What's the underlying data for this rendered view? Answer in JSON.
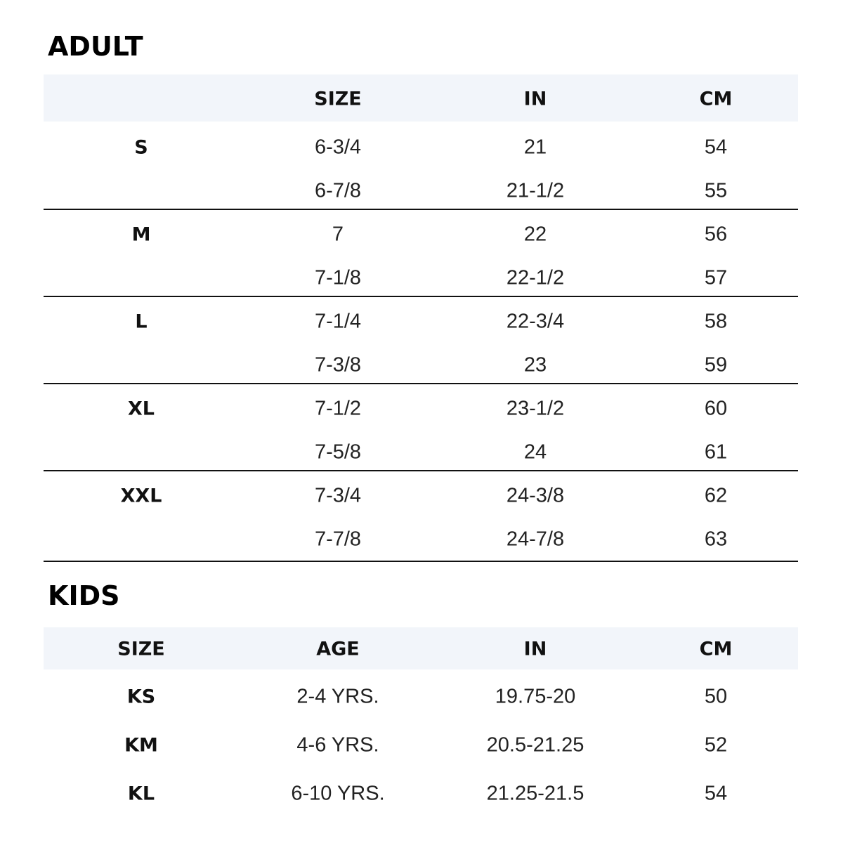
{
  "adult": {
    "title": "ADULT",
    "header": [
      "SIZE",
      "IN",
      "CM"
    ],
    "groups": [
      {
        "label": "S",
        "rows": [
          [
            "6-3/4",
            "21",
            "54"
          ],
          [
            "6-7/8",
            "21-1/2",
            "55"
          ]
        ]
      },
      {
        "label": "M",
        "rows": [
          [
            "7",
            "22",
            "56"
          ],
          [
            "7-1/8",
            "22-1/2",
            "57"
          ]
        ]
      },
      {
        "label": "L",
        "rows": [
          [
            "7-1/4",
            "22-3/4",
            "58"
          ],
          [
            "7-3/8",
            "23",
            "59"
          ]
        ]
      },
      {
        "label": "XL",
        "rows": [
          [
            "7-1/2",
            "23-1/2",
            "60"
          ],
          [
            "7-5/8",
            "24",
            "61"
          ]
        ]
      },
      {
        "label": "XXL",
        "rows": [
          [
            "7-3/4",
            "24-3/8",
            "62"
          ],
          [
            "7-7/8",
            "24-7/8",
            "63"
          ]
        ]
      }
    ]
  },
  "kids": {
    "title": "KIDS",
    "header": [
      "SIZE",
      "AGE",
      "IN",
      "CM"
    ],
    "rows": [
      [
        "KS",
        "2-4 YRS.",
        "19.75-20",
        "50"
      ],
      [
        "KM",
        "4-6 YRS.",
        "20.5-21.25",
        "52"
      ],
      [
        "KL",
        "6-10 YRS.",
        "21.25-21.5",
        "54"
      ]
    ]
  }
}
